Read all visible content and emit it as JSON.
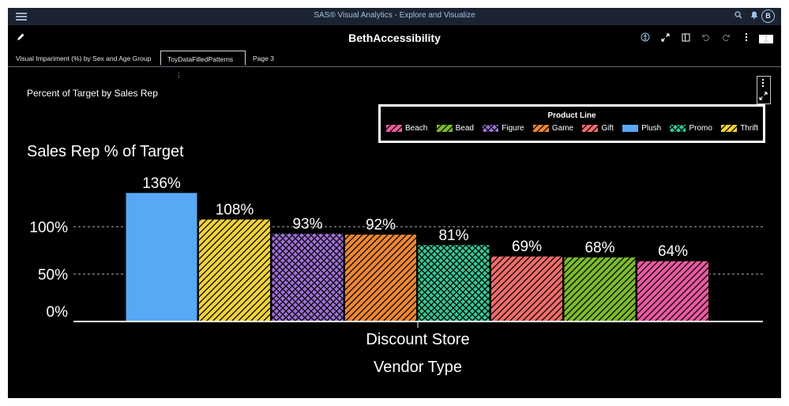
{
  "app": {
    "title": "SAS® Visual Analytics - Explore and Visualize",
    "user_initial": "B"
  },
  "report": {
    "title": "BethAccessibility",
    "page_count": "1"
  },
  "tabs": [
    {
      "label": "Visual Impariment (%) by Sex and Age Group",
      "active": false
    },
    {
      "label": "ToyDataFilledPatterns",
      "active": true
    },
    {
      "label": "Page 3",
      "active": false
    }
  ],
  "object": {
    "title": "Percent of Target by Sales Rep"
  },
  "legend": {
    "title": "Product Line",
    "items": [
      {
        "label": "Beach",
        "color": "#e95aa0",
        "pattern": "diag-right"
      },
      {
        "label": "Bead",
        "color": "#7dba2c",
        "pattern": "diag-right"
      },
      {
        "label": "Figure",
        "color": "#a070d8",
        "pattern": "crosshatch"
      },
      {
        "label": "Game",
        "color": "#ee8733",
        "pattern": "diag-right"
      },
      {
        "label": "Gift",
        "color": "#ee6d6a",
        "pattern": "diag-right"
      },
      {
        "label": "Plush",
        "color": "#58a8f5",
        "pattern": "solid"
      },
      {
        "label": "Promo",
        "color": "#36c894",
        "pattern": "crosshatch"
      },
      {
        "label": "Thrift",
        "color": "#f2d23a",
        "pattern": "diag-right"
      }
    ]
  },
  "chart_data": {
    "type": "bar",
    "title": "Sales Rep % of Target",
    "xlabel": "Vendor Type",
    "categories": [
      "Discount Store"
    ],
    "ylim": [
      0,
      150
    ],
    "yticks": [
      "0%",
      "50%",
      "100%"
    ],
    "gridlines": "dashed",
    "series": [
      {
        "name": "Plush",
        "value": 136,
        "label": "136%",
        "color": "#58a8f5",
        "pattern": "solid"
      },
      {
        "name": "Thrift",
        "value": 108,
        "label": "108%",
        "color": "#f2d23a",
        "pattern": "diag-right"
      },
      {
        "name": "Figure",
        "value": 93,
        "label": "93%",
        "color": "#a070d8",
        "pattern": "crosshatch"
      },
      {
        "name": "Game",
        "value": 92,
        "label": "92%",
        "color": "#ee8733",
        "pattern": "diag-right"
      },
      {
        "name": "Promo",
        "value": 81,
        "label": "81%",
        "color": "#36c894",
        "pattern": "crosshatch"
      },
      {
        "name": "Gift",
        "value": 69,
        "label": "69%",
        "color": "#ee6d6a",
        "pattern": "diag-right"
      },
      {
        "name": "Bead",
        "value": 68,
        "label": "68%",
        "color": "#7dba2c",
        "pattern": "diag-right"
      },
      {
        "name": "Beach",
        "value": 64,
        "label": "64%",
        "color": "#e95aa0",
        "pattern": "diag-right"
      }
    ]
  }
}
